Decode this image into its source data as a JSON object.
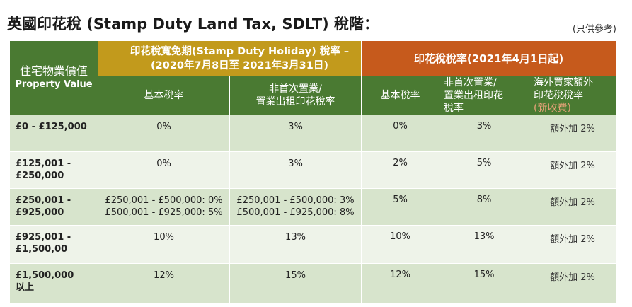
{
  "title": "英國印花稅 (Stamp Duty Land Tax, SDLT) 稅階：",
  "note": "(只供參考)",
  "colors": {
    "green_header": "#4a7a32",
    "gold_header": "#c29a1c",
    "orange_header": "#c65a1c",
    "row_dark": "#d7e4cc",
    "row_light": "#eef3e9"
  },
  "header": {
    "property_value_zh": "住宅物業價值",
    "property_value_en": "Property Value",
    "holiday_line1": "印花稅寬免期(Stamp Duty Holiday) 稅率 –",
    "holiday_line2": "(2020年7月8日至 2021年3月31日)",
    "from_2021": "印花稅稅率(2021年4月1日起)",
    "holiday_basic": "基本稅率",
    "holiday_non_first_l1": "非首次置業/",
    "holiday_non_first_l2": "置業出租印花稅率",
    "new_basic": "基本稅率",
    "new_non_first_l1": "非首次置業/",
    "new_non_first_l2": "置業出租印花",
    "new_non_first_l3": "稅率",
    "overseas_l1": "海外買家額外",
    "overseas_l2": "印花稅稅率",
    "overseas_l3": "(新收費)"
  },
  "rows": [
    {
      "value": [
        "£0 - £125,000"
      ],
      "h_basic": [
        "0%"
      ],
      "h_nonfirst": [
        "3%"
      ],
      "n_basic": "0%",
      "n_nonfirst": "3%",
      "overseas": "額外加 2%"
    },
    {
      "value": [
        "£125,001 -",
        "£250,000"
      ],
      "h_basic": [
        "0%"
      ],
      "h_nonfirst": [
        "3%"
      ],
      "n_basic": "2%",
      "n_nonfirst": "5%",
      "overseas": "額外加 2%"
    },
    {
      "value": [
        "£250,001 -",
        "£925,000"
      ],
      "h_basic": [
        "£250,001 - £500,000: 0%",
        "£500,001 - £925,000: 5%"
      ],
      "h_nonfirst": [
        "£250,001 - £500,000: 3%",
        "£500,001 - £925,000: 8%"
      ],
      "n_basic": "5%",
      "n_nonfirst": "8%",
      "overseas": "額外加 2%"
    },
    {
      "value": [
        "£925,001 -",
        "£1,500,00"
      ],
      "h_basic": [
        "10%"
      ],
      "h_nonfirst": [
        "13%"
      ],
      "n_basic": "10%",
      "n_nonfirst": "13%",
      "overseas": "額外加 2%"
    },
    {
      "value": [
        "£1,500,000",
        "以上"
      ],
      "h_basic": [
        "12%"
      ],
      "h_nonfirst": [
        "15%"
      ],
      "n_basic": "12%",
      "n_nonfirst": "15%",
      "overseas": "額外加 2%"
    }
  ]
}
